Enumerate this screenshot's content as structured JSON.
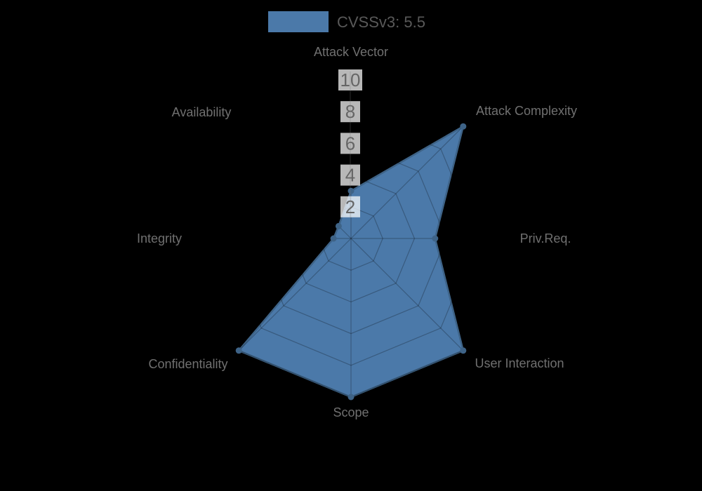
{
  "background_color": "#000000",
  "legend": {
    "label": "CVSSv3: 5.5",
    "swatch_color": "#4b79a9"
  },
  "chart_data": {
    "type": "radar",
    "title": "CVSSv3: 5.5",
    "axes": [
      "Attack Vector",
      "Attack Complexity",
      "Priv.Req.",
      "User Interaction",
      "Scope",
      "Confidentiality",
      "Integrity",
      "Availability"
    ],
    "series": [
      {
        "name": "CVSSv3: 5.5",
        "values": [
          3.0,
          10,
          5.3,
          10,
          10,
          10,
          1.1,
          1.1
        ]
      }
    ],
    "ticks": [
      2,
      4,
      6,
      8,
      10
    ],
    "axis_range": [
      0,
      10
    ],
    "grid": "spider-web rings at each tick, 8 radial spokes",
    "legend_position": "top-center",
    "colors": {
      "fill": "#4b79a9",
      "stroke": "#3e6387",
      "vertex_dot": "#3e6387",
      "grid_line": "rgba(0,0,0,0.25)",
      "axis_label": "#707070",
      "tick_text": "#666666",
      "tick_box": "rgba(255,255,255,0.72)",
      "legend_text": "#595959"
    }
  }
}
